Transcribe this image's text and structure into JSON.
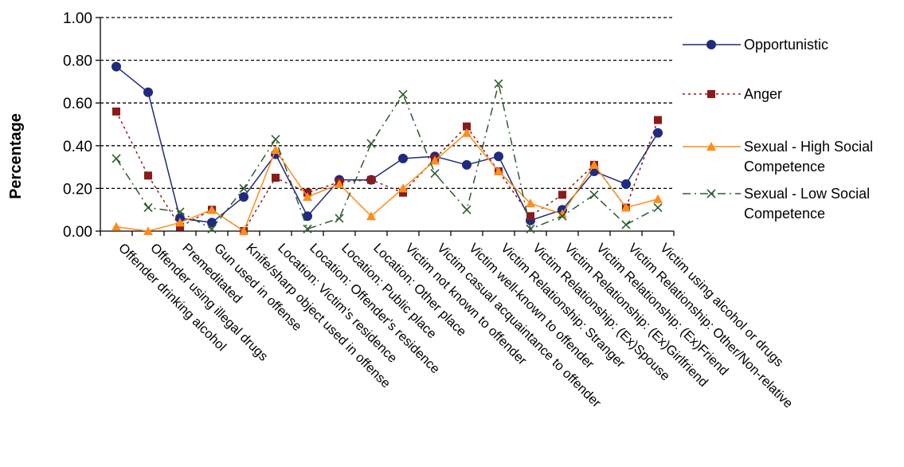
{
  "chart_data": {
    "type": "line",
    "title": "",
    "xlabel": "",
    "ylabel": "Percentage",
    "ylim": [
      0,
      1.0
    ],
    "yticks": [
      "0.00",
      "0.20",
      "0.40",
      "0.60",
      "0.80",
      "1.00"
    ],
    "grid": "horizontal dashed",
    "legend_position": "right",
    "categories": [
      "Offender drinking alcohol",
      "Offender using illegal drugs",
      "Premeditated",
      "Gun used in offense",
      "Knife/sharp object used in offense",
      "Location: Victim's residence",
      "Location: Offender's residence",
      "Location: Public place",
      "Location: Other place",
      "Victim not known to offender",
      "Victim casual acquaintance to offender",
      "Victim well-known to offender",
      "Victim Relationship: Stranger",
      "Victim Relationship: (Ex)Spouse",
      "Victim Relationship: (Ex)Girlfriend",
      "Victim Relationship: (Ex)Friend",
      "Victim Relationship: Other/Non-relative",
      "Victim using alcohol or drugs"
    ],
    "series": [
      {
        "name": "Opportunistic",
        "color": "#1f2a80",
        "marker": "circle",
        "line": "solid",
        "values": [
          0.77,
          0.65,
          0.06,
          0.04,
          0.16,
          0.36,
          0.07,
          0.24,
          0.24,
          0.34,
          0.35,
          0.31,
          0.35,
          0.05,
          0.1,
          0.28,
          0.22,
          0.46
        ]
      },
      {
        "name": "Anger",
        "color": "#8b1a1a",
        "marker": "square",
        "line": "dotted",
        "values": [
          0.56,
          0.26,
          0.02,
          0.1,
          0.0,
          0.25,
          0.18,
          0.23,
          0.24,
          0.18,
          0.34,
          0.49,
          0.28,
          0.07,
          0.17,
          0.31,
          0.11,
          0.52
        ]
      },
      {
        "name": "Sexual - High Social Competence",
        "color": "#ff8c1a",
        "marker": "triangle",
        "line": "solid",
        "values": [
          0.02,
          0.0,
          0.04,
          0.1,
          0.0,
          0.38,
          0.16,
          0.22,
          0.07,
          0.2,
          0.33,
          0.46,
          0.28,
          0.13,
          0.08,
          0.31,
          0.11,
          0.15
        ]
      },
      {
        "name": "Sexual - Low Social Competence",
        "color": "#2f5a2f",
        "marker": "x",
        "line": "dashdot",
        "values": [
          0.34,
          0.11,
          0.09,
          0.01,
          0.2,
          0.43,
          0.01,
          0.06,
          0.41,
          0.64,
          0.27,
          0.1,
          0.69,
          0.01,
          0.07,
          0.17,
          0.03,
          0.11
        ]
      }
    ],
    "legend": [
      [
        "Opportunistic"
      ],
      [
        "Anger"
      ],
      [
        "Sexual - High Social",
        "Competence"
      ],
      [
        "Sexual - Low Social",
        "Competence"
      ]
    ]
  }
}
